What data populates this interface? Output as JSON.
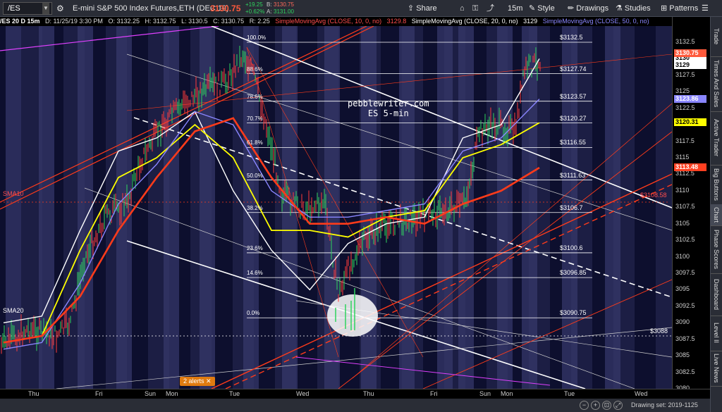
{
  "toolbar": {
    "symbol": "/ES",
    "instrument": "E-mini S&P 500 Index Futures,ETH (DEC 19)",
    "last_price": "3130.75",
    "change_pts": "+19.25",
    "change_pct": "+0.62%",
    "bid": "3130.75",
    "ask": "3131.00",
    "share_label": "Share",
    "interval_label": "15m",
    "style_label": "Style",
    "drawings_label": "Drawings",
    "studies_label": "Studies",
    "patterns_label": "Patterns",
    "colors": {
      "bg": "#2a2d36",
      "up": "#2fd35e",
      "down": "#ff4d4d",
      "price": "#ff5a3c"
    }
  },
  "infobar": {
    "title": "/ES 20 D 15m",
    "datetime": "D: 11/25/19 3:30 PM",
    "open": "O: 3132.25",
    "high": "H: 3132.75",
    "low": "L: 3130.5",
    "close": "C: 3130.75",
    "range": "R: 2.25",
    "sma10_label": "SimpleMovingAvg (CLOSE, 10, 0, no)",
    "sma10_value": "3129.8",
    "sma20_label": "SimpleMovingAvg (CLOSE, 20, 0, no)",
    "sma20_value": "3129",
    "sma50_label": "SimpleMovingAvg (CLOSE, 50, 0, no)"
  },
  "chart_data": {
    "type": "candlestick",
    "symbol": "/ES",
    "timeframe": "15m",
    "ylim": [
      3080,
      3135
    ],
    "y_ticks": [
      3080,
      3082.5,
      3085,
      3087.5,
      3090,
      3092.5,
      3095,
      3097.5,
      3100,
      3102.5,
      3105,
      3107.5,
      3110,
      3112.5,
      3115,
      3117.5,
      3120,
      3122.5,
      3125,
      3127.5,
      3130,
      3132.5
    ],
    "x_labels": [
      "Thu",
      "Fri",
      "Sun",
      "Mon",
      "Tue",
      "Wed",
      "Thu",
      "Fri",
      "Sun",
      "Mon",
      "Tue",
      "Wed"
    ],
    "fib_levels": [
      {
        "ratio": "100.0%",
        "price": "$3132.5"
      },
      {
        "ratio": "88.6%",
        "price": "$3127.74"
      },
      {
        "ratio": "78.6%",
        "price": "$3123.57"
      },
      {
        "ratio": "70.7%",
        "price": "$3120.27"
      },
      {
        "ratio": "61.8%",
        "price": "$3116.55"
      },
      {
        "ratio": "50.0%",
        "price": "$3111.63"
      },
      {
        "ratio": "38.2%",
        "price": "$3106.7"
      },
      {
        "ratio": "23.6%",
        "price": "$3100.6"
      },
      {
        "ratio": "14.6%",
        "price": "$3096.85"
      },
      {
        "ratio": "0.0%",
        "price": "$3090.75"
      }
    ],
    "price_tags": [
      {
        "label": "3130",
        "color": "#ffffff"
      },
      {
        "label": "3130.75",
        "color": "#ff5a3c"
      },
      {
        "label": "3129",
        "color": "#ffffff"
      },
      {
        "label": "3123.86",
        "color": "#8a86ff"
      },
      {
        "label": "3120.31",
        "color": "#ffff00"
      },
      {
        "label": "3113.48",
        "color": "#ff4020"
      }
    ],
    "annotations": {
      "watermark_line1": "pebblewriter.com",
      "watermark_line2": "ES 5-min",
      "sma10_tag": "SMA10",
      "sma10_level": "$3108.58",
      "sma20_tag": "SMA20",
      "sma20_level": "$3088"
    },
    "series": [
      {
        "name": "SMA10",
        "color": "#ffffff",
        "values": [
          3090,
          3091,
          3104,
          3116,
          3118,
          3122,
          3110,
          3101,
          3095,
          3102,
          3105,
          3106,
          3118,
          3120,
          3130
        ]
      },
      {
        "name": "SMA20",
        "color": "#ffff00",
        "values": [
          3087,
          3088,
          3101,
          3112,
          3115,
          3120,
          3115,
          3104,
          3104,
          3103,
          3106,
          3107,
          3115,
          3117,
          3120.3
        ]
      },
      {
        "name": "SMA50",
        "color": "#8a86ff",
        "values": [
          3086,
          3087,
          3096,
          3108,
          3114,
          3122,
          3120,
          3110,
          3106,
          3106,
          3107,
          3108,
          3116,
          3118,
          3123.9
        ]
      }
    ]
  },
  "sidebar_tabs": [
    "Trade",
    "Times And Sales",
    "Active Trader",
    "Big Buttons",
    "Chart",
    "Phase Scores",
    "Dashboard",
    "Level II",
    "Live News"
  ],
  "alerts_label": "2 alerts ✕",
  "drawing_set": "Drawing set: 2019-1125"
}
